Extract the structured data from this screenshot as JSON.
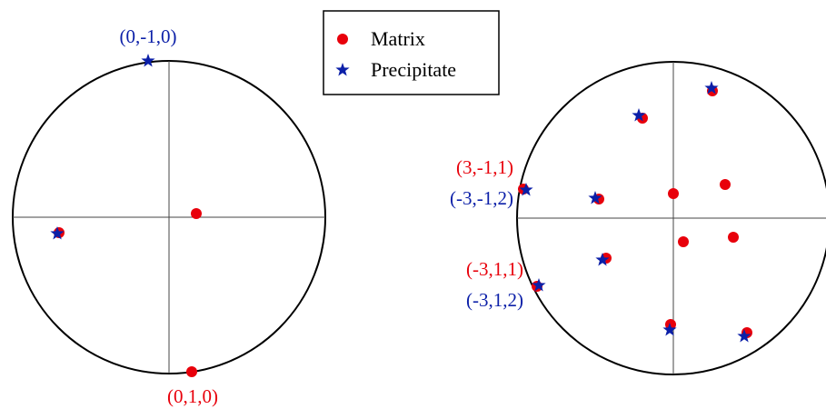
{
  "colors": {
    "matrix": "#e8000b",
    "precipitate": "#0b1fa8",
    "outline": "#000000",
    "axis": "#444444"
  },
  "legend": {
    "matrix_label": "Matrix",
    "precipitate_label": "Precipitate"
  },
  "left_figure": {
    "labels": {
      "top": "(0,-1,0)",
      "bottom": "(0,1,0)"
    }
  },
  "right_figure": {
    "labels": {
      "upper_red": "(3,-1,1)",
      "upper_blue": "(-3,-1,2)",
      "lower_red": "(-3,1,1)",
      "lower_blue": "(-3,1,2)"
    }
  }
}
